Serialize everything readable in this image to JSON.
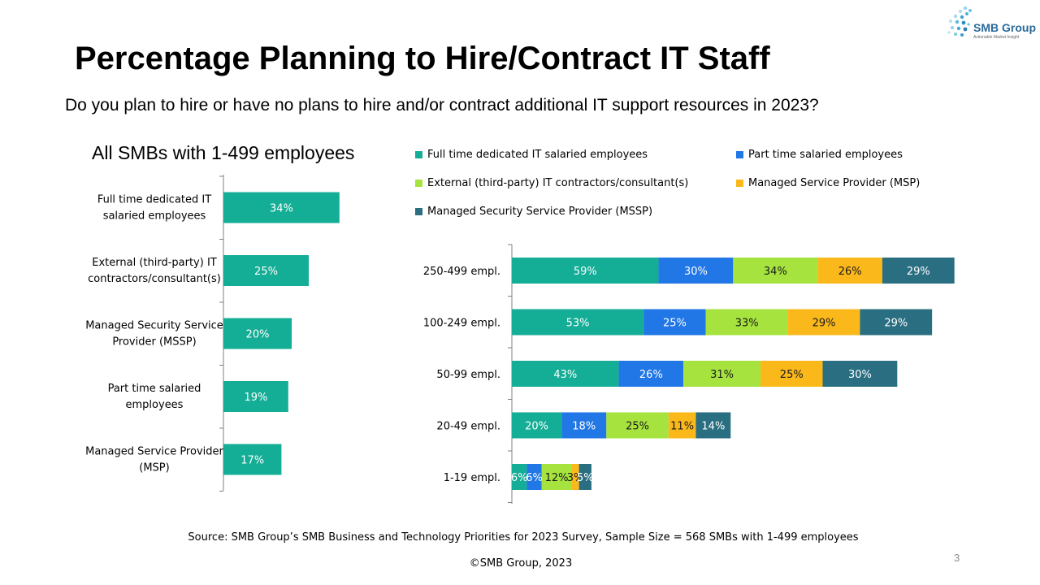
{
  "slide": {
    "title": "Percentage Planning to Hire/Contract IT Staff",
    "subtitle": "Do you plan to hire or have no plans to hire and/or contract additional IT support resources in 2023?",
    "source": "Source: SMB Group’s SMB Business and Technology Priorities for 2023 Survey, Sample Size = 568 SMBs with 1-499 employees",
    "copyright": "©SMB Group, 2023",
    "page_number": "3",
    "logo_text": "SMB Group",
    "logo_tagline": "Actionable Market Insight"
  },
  "colors": {
    "full_time": "#14ad96",
    "part_time": "#2177e6",
    "external": "#a6e33e",
    "msp": "#fbb81b",
    "mssp": "#2a6e82"
  },
  "chart_data": [
    {
      "type": "bar",
      "orientation": "horizontal",
      "title": "All SMBs with 1-499 employees",
      "categories": [
        "Full time dedicated IT salaried employees",
        "External (third-party) IT contractors/consultant(s)",
        "Managed Security Service Provider (MSSP)",
        "Part time salaried employees",
        "Managed Service Provider (MSP)"
      ],
      "category_lines": [
        [
          "Full time dedicated IT",
          "salaried employees"
        ],
        [
          "External (third-party) IT",
          "contractors/consultant(s)"
        ],
        [
          "Managed Security Service",
          "Provider (MSSP)"
        ],
        [
          "Part time salaried",
          "employees"
        ],
        [
          "Managed Service Provider",
          "(MSP)"
        ]
      ],
      "values": [
        34,
        25,
        20,
        19,
        17
      ],
      "data_labels": [
        "34%",
        "25%",
        "20%",
        "19%",
        "17%"
      ],
      "color": "#14ad96"
    },
    {
      "type": "bar",
      "orientation": "horizontal",
      "stacked": true,
      "categories": [
        "250-499 empl.",
        "100-249 empl.",
        "50-99 empl.",
        "20-49 empl.",
        "1-19 empl."
      ],
      "legend_position": "top",
      "series": [
        {
          "name": "Full time dedicated IT salaried employees",
          "color": "#14ad96",
          "values": [
            59,
            53,
            43,
            20,
            6
          ]
        },
        {
          "name": "Part time salaried employees",
          "color": "#2177e6",
          "values": [
            30,
            25,
            26,
            18,
            6
          ]
        },
        {
          "name": "External (third-party) IT contractors/consultant(s)",
          "color": "#a6e33e",
          "values": [
            34,
            33,
            31,
            25,
            12
          ]
        },
        {
          "name": "Managed Service Provider (MSP)",
          "color": "#fbb81b",
          "values": [
            26,
            29,
            25,
            11,
            3
          ]
        },
        {
          "name": "Managed Security Service Provider (MSSP)",
          "color": "#2a6e82",
          "values": [
            29,
            29,
            30,
            14,
            5
          ]
        }
      ]
    }
  ]
}
